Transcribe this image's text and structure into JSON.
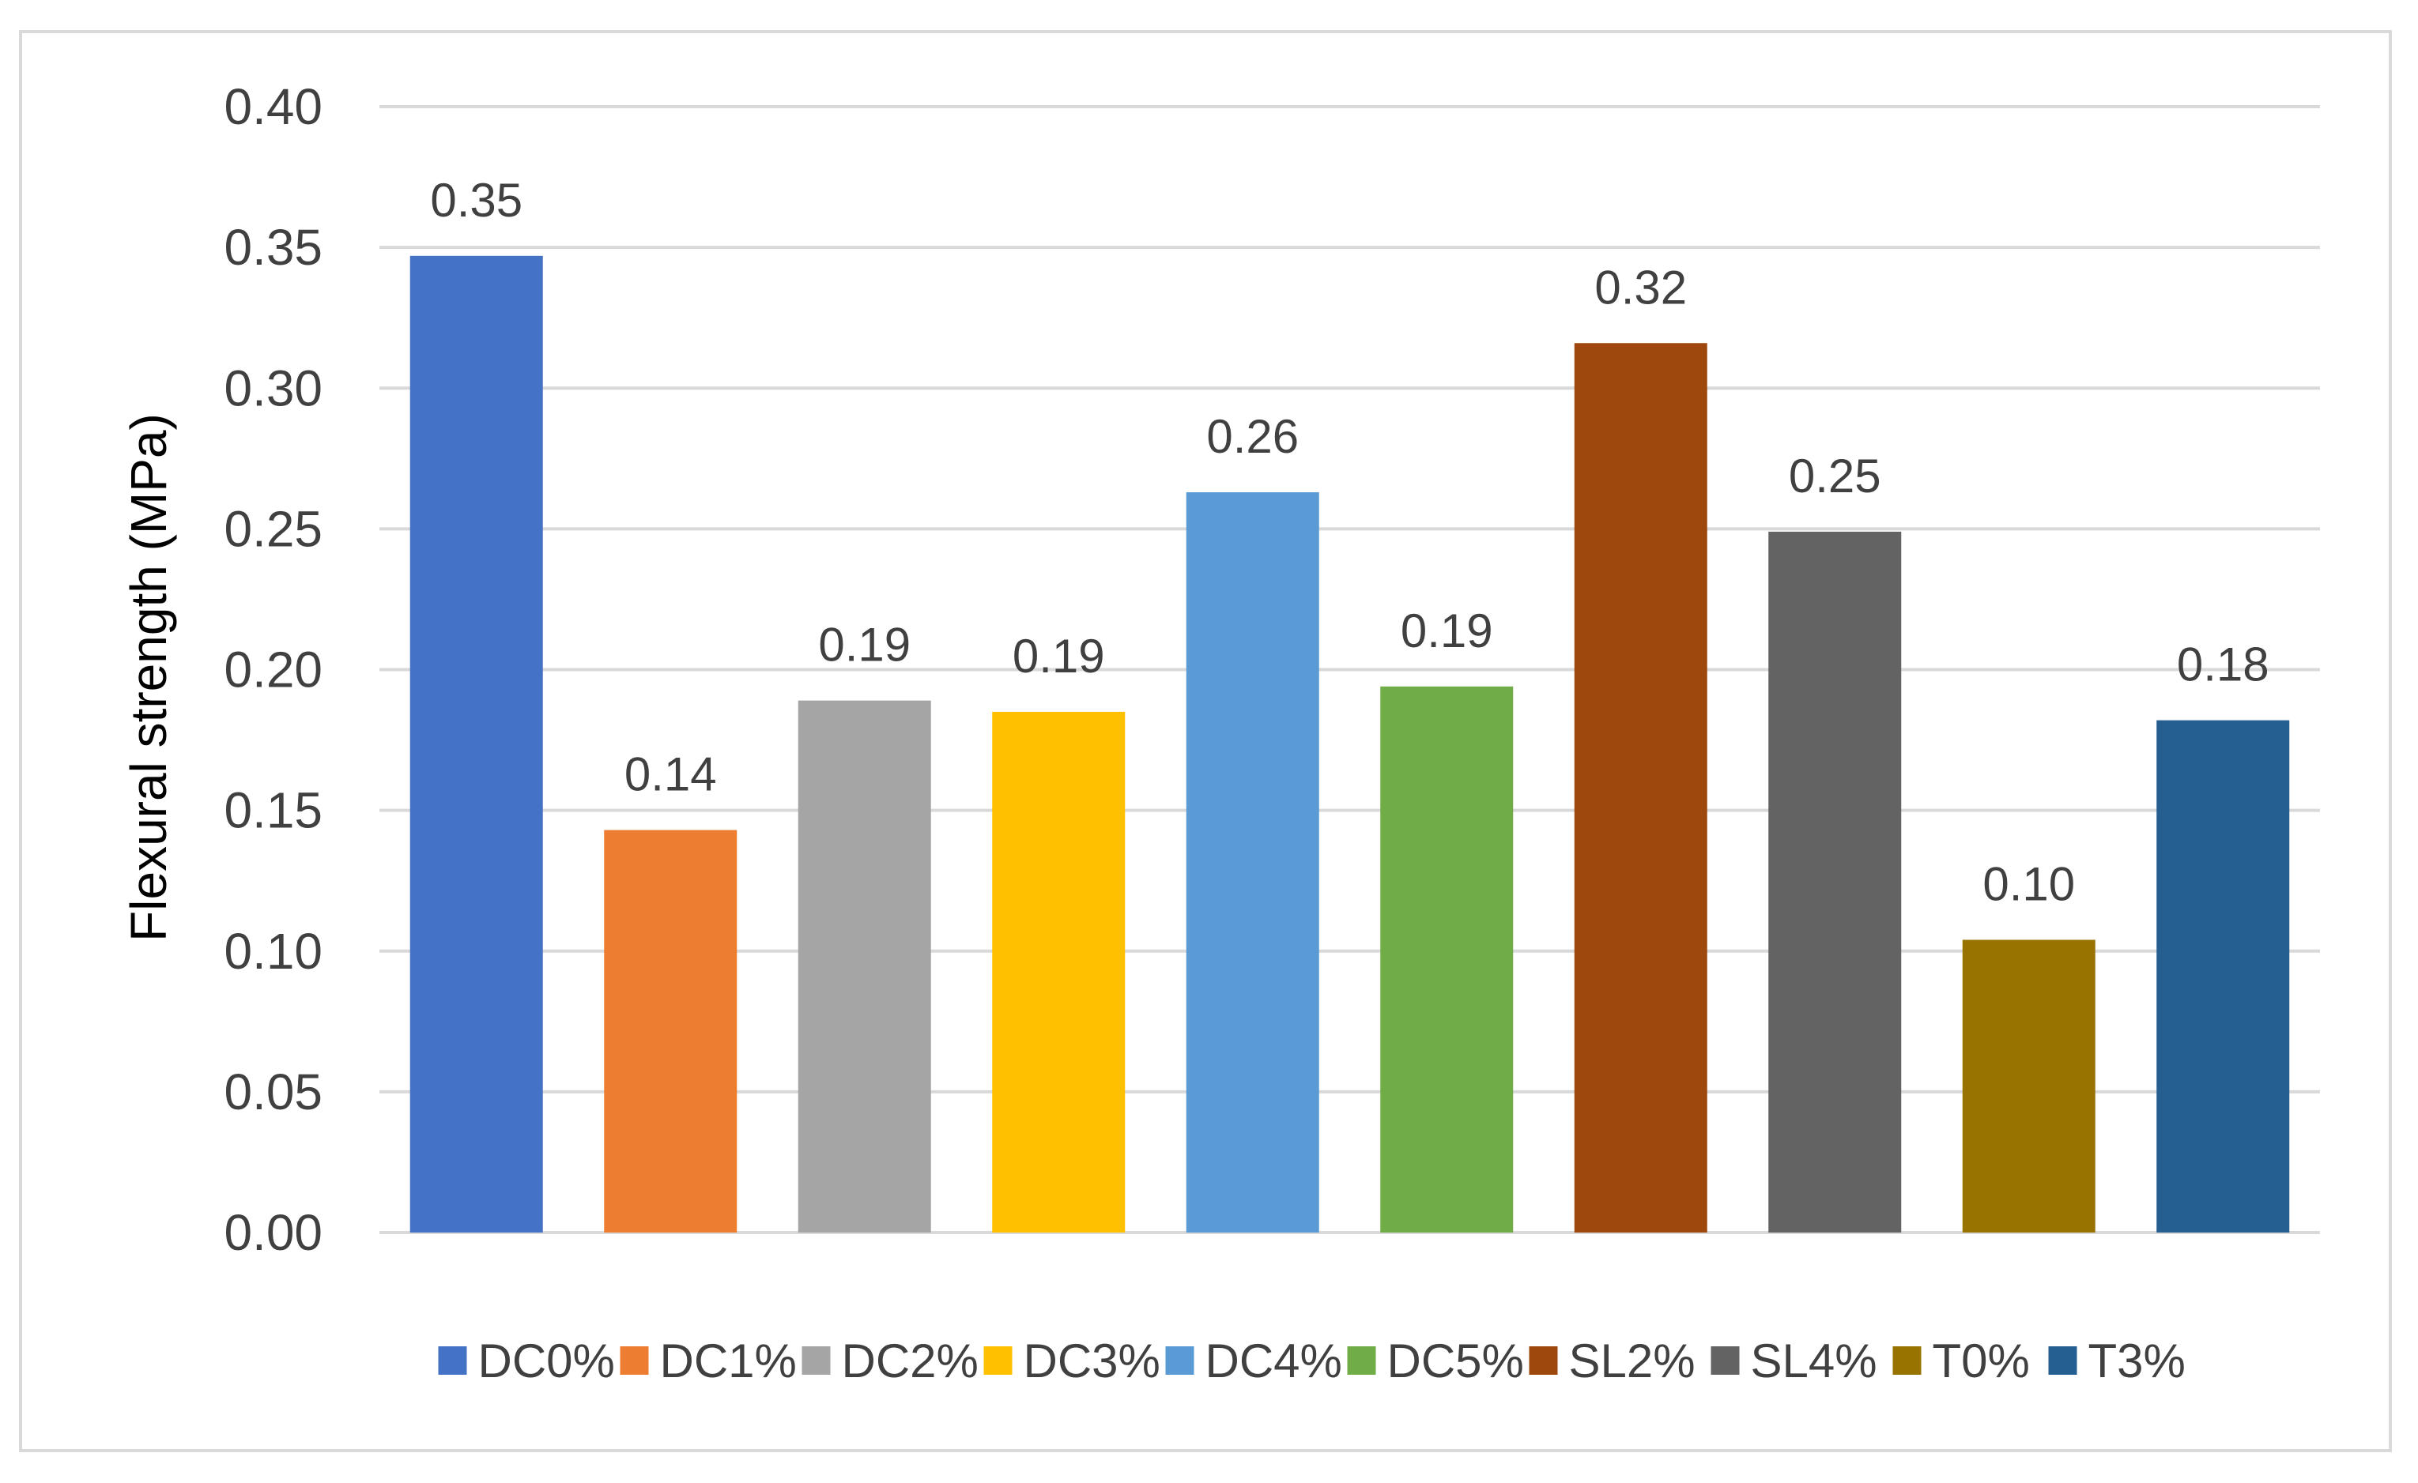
{
  "chart_data": {
    "type": "bar",
    "title": "",
    "xlabel": "",
    "ylabel": "Flexural strength (MPa)",
    "ylim": [
      0,
      0.4
    ],
    "ytick_step": 0.05,
    "ytick_labels": [
      "0.00",
      "0.05",
      "0.10",
      "0.15",
      "0.20",
      "0.25",
      "0.30",
      "0.35",
      "0.40"
    ],
    "grid": true,
    "legend_position": "bottom",
    "categories": [
      "DC0%",
      "DC1%",
      "DC2%",
      "DC3%",
      "DC4%",
      "DC5%",
      "SL2%",
      "SL4%",
      "T0%",
      "T3%"
    ],
    "values": [
      0.347,
      0.143,
      0.189,
      0.185,
      0.263,
      0.194,
      0.316,
      0.249,
      0.104,
      0.182
    ],
    "data_labels": [
      "0.35",
      "0.14",
      "0.19",
      "0.19",
      "0.26",
      "0.19",
      "0.32",
      "0.25",
      "0.10",
      "0.18"
    ],
    "colors": [
      "#4472c4",
      "#ed7d31",
      "#a5a5a5",
      "#ffc000",
      "#5b9bd5",
      "#70ad47",
      "#9e480e",
      "#636363",
      "#997300",
      "#255e91"
    ]
  }
}
